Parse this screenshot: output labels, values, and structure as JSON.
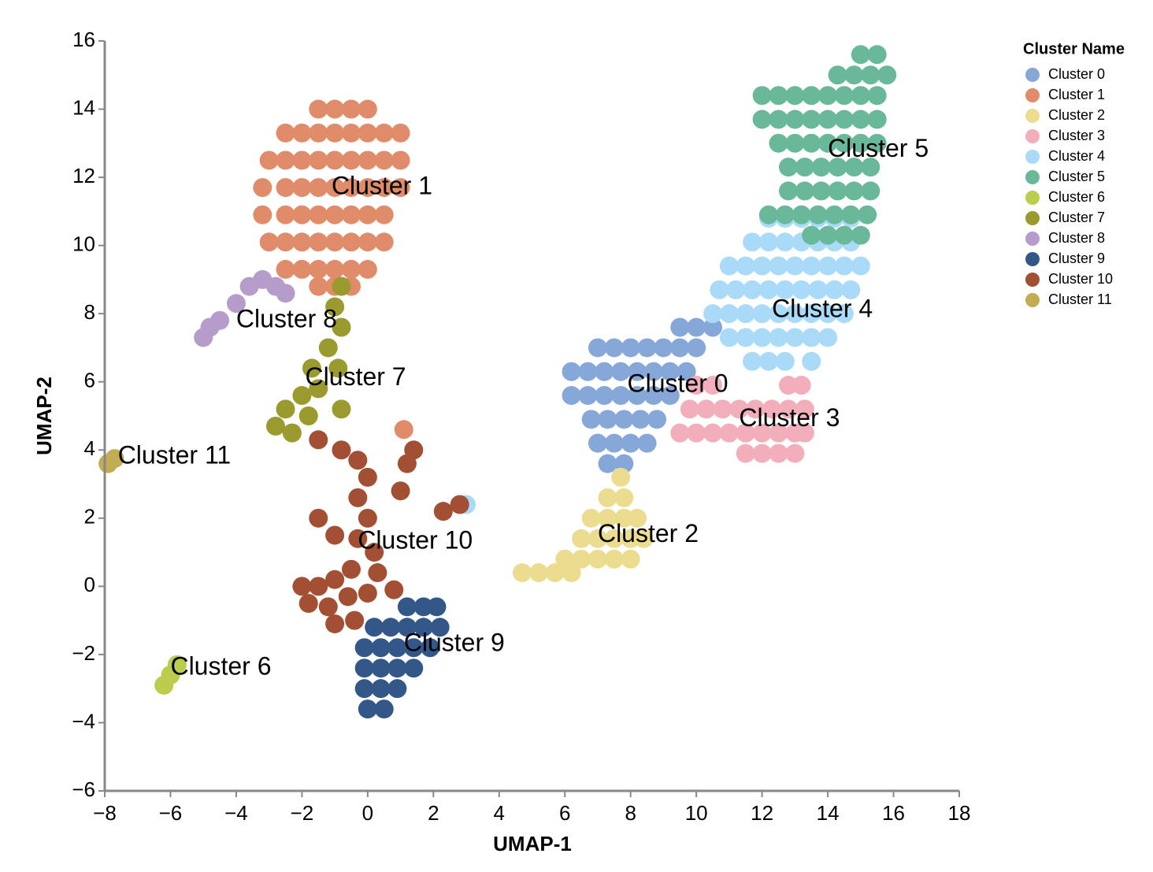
{
  "chart_data": {
    "type": "scatter",
    "xlabel": "UMAP-1",
    "ylabel": "UMAP-2",
    "legend_title": "Cluster Name",
    "legend": "right",
    "xlim": [
      -8,
      18
    ],
    "ylim": [
      -6,
      16
    ],
    "xticks": [
      {
        "value": -8,
        "label": "−8"
      },
      {
        "value": -6,
        "label": "−6"
      },
      {
        "value": -4,
        "label": "−4"
      },
      {
        "value": -2,
        "label": "−2"
      },
      0,
      2,
      4,
      6,
      8,
      10,
      12,
      14,
      16,
      18
    ],
    "yticks": [
      {
        "value": -6,
        "label": "−6"
      },
      {
        "value": -4,
        "label": "−4"
      },
      {
        "value": -2,
        "label": "−2"
      },
      0,
      2,
      4,
      6,
      8,
      10,
      12,
      14,
      16
    ],
    "series": [
      {
        "name": "Cluster 0",
        "color": "#86a8d9",
        "x": [
          7,
          7.5,
          8,
          8.5,
          9,
          9.5,
          10,
          6.2,
          6.7,
          7.2,
          7.7,
          8.2,
          8.7,
          9.2,
          9.7,
          6.2,
          6.7,
          7.2,
          7.7,
          8.2,
          8.7,
          9.2,
          6.8,
          7.3,
          7.8,
          8.3,
          8.8,
          7,
          7.5,
          8,
          8.5,
          7.3,
          7.8,
          9.5,
          10,
          10.5
        ],
        "y": [
          7,
          7,
          7,
          7,
          7,
          7,
          7,
          6.3,
          6.3,
          6.3,
          6.3,
          6.3,
          6.3,
          6.3,
          6.3,
          5.6,
          5.6,
          5.6,
          5.6,
          5.6,
          5.6,
          5.6,
          4.9,
          4.9,
          4.9,
          4.9,
          4.9,
          4.2,
          4.2,
          4.2,
          4.2,
          3.6,
          3.6,
          7.6,
          7.6,
          7.6
        ]
      },
      {
        "name": "Cluster 1",
        "color": "#e08c6a",
        "x": [
          -1.5,
          -1,
          -0.5,
          0,
          -2.5,
          -2,
          -1.5,
          -1,
          -0.5,
          0,
          0.5,
          1,
          -3,
          -2.5,
          -2,
          -1.5,
          -1,
          -0.5,
          0,
          0.5,
          1,
          -3.2,
          -2.5,
          -2,
          -1.5,
          -1,
          -0.5,
          0,
          0.5,
          1,
          -3.2,
          -2.5,
          -2,
          -1.5,
          -1,
          -0.5,
          0,
          0.5,
          -3,
          -2.5,
          -2,
          -1.5,
          -1,
          -0.5,
          0,
          0.5,
          -2.5,
          -2,
          -1.5,
          -1,
          -0.5,
          0,
          -1.5,
          -1,
          -0.5,
          1.1
        ],
        "y": [
          14,
          14,
          14,
          14,
          13.3,
          13.3,
          13.3,
          13.3,
          13.3,
          13.3,
          13.3,
          13.3,
          12.5,
          12.5,
          12.5,
          12.5,
          12.5,
          12.5,
          12.5,
          12.5,
          12.5,
          11.7,
          11.7,
          11.7,
          11.7,
          11.7,
          11.7,
          11.7,
          11.7,
          11.7,
          10.9,
          10.9,
          10.9,
          10.9,
          10.9,
          10.9,
          10.9,
          10.9,
          10.1,
          10.1,
          10.1,
          10.1,
          10.1,
          10.1,
          10.1,
          10.1,
          9.3,
          9.3,
          9.3,
          9.3,
          9.3,
          9.3,
          8.8,
          8.8,
          8.8,
          4.6
        ]
      },
      {
        "name": "Cluster 2",
        "color": "#ebdc90",
        "x": [
          7.7,
          7.3,
          7.8,
          6.8,
          7.3,
          7.8,
          8.2,
          6.5,
          7,
          7.5,
          8,
          8.4,
          6,
          6.5,
          7,
          7.5,
          8,
          4.7,
          5.2,
          5.7,
          6.2
        ],
        "y": [
          3.2,
          2.6,
          2.6,
          2,
          2,
          2,
          2,
          1.4,
          1.4,
          1.4,
          1.4,
          1.4,
          0.8,
          0.8,
          0.8,
          0.8,
          0.8,
          0.4,
          0.4,
          0.4,
          0.4
        ]
      },
      {
        "name": "Cluster 3",
        "color": "#f2aebb",
        "x": [
          10,
          10.5,
          12.8,
          13.2,
          9.8,
          10.3,
          10.8,
          11.3,
          11.8,
          12.3,
          12.8,
          13.3,
          9.5,
          10,
          10.5,
          11,
          11.5,
          12,
          12.5,
          13,
          13.3,
          11.5,
          12,
          12.5,
          13
        ],
        "y": [
          5.9,
          5.9,
          5.9,
          5.9,
          5.2,
          5.2,
          5.2,
          5.2,
          5.2,
          5.2,
          5.2,
          5.2,
          4.5,
          4.5,
          4.5,
          4.5,
          4.5,
          4.5,
          4.5,
          4.5,
          4.5,
          3.9,
          3.9,
          3.9,
          3.9
        ]
      },
      {
        "name": "Cluster 4",
        "color": "#a9dbf9",
        "x": [
          12.2,
          12.7,
          13.2,
          13.7,
          14.2,
          14.7,
          11.7,
          12.2,
          12.7,
          13.2,
          13.7,
          14.2,
          14.7,
          11,
          11.5,
          12,
          12.5,
          13,
          13.5,
          14,
          14.5,
          15,
          10.7,
          11.2,
          11.7,
          12.2,
          12.7,
          13.2,
          13.7,
          14.2,
          14.7,
          10.5,
          11,
          11.5,
          12,
          12.5,
          13,
          13.5,
          14,
          14.5,
          11,
          11.5,
          12,
          12.5,
          13,
          13.5,
          14,
          11.7,
          12.2,
          12.7,
          13.5,
          3
        ],
        "y": [
          10.8,
          10.8,
          10.8,
          10.8,
          10.8,
          10.8,
          10.1,
          10.1,
          10.1,
          10.1,
          10.1,
          10.1,
          10.1,
          9.4,
          9.4,
          9.4,
          9.4,
          9.4,
          9.4,
          9.4,
          9.4,
          9.4,
          8.7,
          8.7,
          8.7,
          8.7,
          8.7,
          8.7,
          8.7,
          8.7,
          8.7,
          8,
          8,
          8,
          8,
          8,
          8,
          8,
          8,
          8,
          7.3,
          7.3,
          7.3,
          7.3,
          7.3,
          7.3,
          7.3,
          6.6,
          6.6,
          6.6,
          6.6,
          2.4
        ]
      },
      {
        "name": "Cluster 5",
        "color": "#68b899",
        "x": [
          15,
          15.5,
          14.3,
          14.8,
          15.3,
          15.8,
          12,
          12.5,
          13,
          13.5,
          14,
          14.5,
          15,
          15.5,
          12,
          12.5,
          13,
          13.5,
          14,
          14.5,
          15,
          15.5,
          12.5,
          13,
          13.5,
          14,
          14.5,
          15,
          15.5,
          12.8,
          13.3,
          13.8,
          14.3,
          14.8,
          15.3,
          12.8,
          13.3,
          13.8,
          14.3,
          14.8,
          15.3,
          12.2,
          12.7,
          13.2,
          13.7,
          14.2,
          14.7,
          15.2,
          13.5,
          14,
          14.5,
          15
        ],
        "y": [
          15.6,
          15.6,
          15,
          15,
          15,
          15,
          14.4,
          14.4,
          14.4,
          14.4,
          14.4,
          14.4,
          14.4,
          14.4,
          13.7,
          13.7,
          13.7,
          13.7,
          13.7,
          13.7,
          13.7,
          13.7,
          13,
          13,
          13,
          13,
          13,
          13,
          13,
          12.3,
          12.3,
          12.3,
          12.3,
          12.3,
          12.3,
          11.6,
          11.6,
          11.6,
          11.6,
          11.6,
          11.6,
          10.9,
          10.9,
          10.9,
          10.9,
          10.9,
          10.9,
          10.9,
          10.3,
          10.3,
          10.3,
          10.3
        ]
      },
      {
        "name": "Cluster 6",
        "color": "#bccd4e",
        "x": [
          -6.2,
          -6,
          -5.8
        ],
        "y": [
          -2.9,
          -2.6,
          -2.3
        ]
      },
      {
        "name": "Cluster 7",
        "color": "#9a9a2e",
        "x": [
          -0.8,
          -1,
          -0.8,
          -1.2,
          -0.9,
          -1.7,
          -1.5,
          -2,
          -2.5,
          -1.8,
          -2.8,
          -2.3,
          -0.8
        ],
        "y": [
          8.8,
          8.2,
          7.6,
          7,
          6.4,
          6.4,
          5.8,
          5.6,
          5.2,
          5,
          4.7,
          4.5,
          5.2
        ]
      },
      {
        "name": "Cluster 8",
        "color": "#b59ccb",
        "x": [
          -5,
          -4.5,
          -4,
          -3.6,
          -3.2,
          -4.8,
          -2.8,
          -2.5
        ],
        "y": [
          7.3,
          7.8,
          8.3,
          8.8,
          9,
          7.6,
          8.8,
          8.6
        ]
      },
      {
        "name": "Cluster 9",
        "color": "#34578a",
        "x": [
          1.2,
          1.7,
          2.1,
          0.2,
          0.7,
          1.2,
          1.7,
          2.2,
          -0.1,
          0.4,
          0.9,
          1.4,
          1.9,
          -0.1,
          0.4,
          0.9,
          1.4,
          -0.1,
          0.4,
          0.9,
          0,
          0.5
        ],
        "y": [
          -0.6,
          -0.6,
          -0.6,
          -1.2,
          -1.2,
          -1.2,
          -1.2,
          -1.2,
          -1.8,
          -1.8,
          -1.8,
          -1.8,
          -1.8,
          -2.4,
          -2.4,
          -2.4,
          -2.4,
          -3,
          -3,
          -3,
          -3.6,
          -3.6
        ]
      },
      {
        "name": "Cluster 10",
        "color": "#a24f33",
        "x": [
          -1.5,
          -0.8,
          -0.3,
          0,
          -0.3,
          0,
          -0.3,
          0.2,
          -0.5,
          0.3,
          -1,
          -1.5,
          -2,
          -1.8,
          -1.2,
          -0.6,
          0,
          0.8,
          -1,
          -0.4,
          1.2,
          1,
          1.4,
          2.8,
          2.3,
          -1,
          -1.5
        ],
        "y": [
          4.3,
          4,
          3.7,
          3.2,
          2.6,
          2,
          1.4,
          1,
          0.5,
          0.4,
          0.2,
          0,
          0,
          -0.5,
          -0.6,
          -0.3,
          -0.2,
          -0.1,
          -1.1,
          -1,
          3.6,
          2.8,
          4,
          2.4,
          2.2,
          1.5,
          2
        ]
      },
      {
        "name": "Cluster 11",
        "color": "#c2ad52",
        "x": [
          -7.9,
          -7.7
        ],
        "y": [
          3.6,
          3.75
        ]
      }
    ],
    "annotations": [
      {
        "text": "Cluster 1",
        "x": -1.1,
        "y": 11.7
      },
      {
        "text": "Cluster 5",
        "x": 14,
        "y": 12.8
      },
      {
        "text": "Cluster 8",
        "x": -4,
        "y": 7.8
      },
      {
        "text": "Cluster 7",
        "x": -1.9,
        "y": 6.1
      },
      {
        "text": "Cluster 11",
        "x": -7.6,
        "y": 3.8
      },
      {
        "text": "Cluster 4",
        "x": 12.3,
        "y": 8.1
      },
      {
        "text": "Cluster 0",
        "x": 7.9,
        "y": 5.9
      },
      {
        "text": "Cluster 3",
        "x": 11.3,
        "y": 4.9
      },
      {
        "text": "Cluster 2",
        "x": 7,
        "y": 1.5
      },
      {
        "text": "Cluster 10",
        "x": -0.3,
        "y": 1.3
      },
      {
        "text": "Cluster 9",
        "x": 1.1,
        "y": -1.7
      },
      {
        "text": "Cluster 6",
        "x": -6,
        "y": -2.4
      }
    ]
  }
}
